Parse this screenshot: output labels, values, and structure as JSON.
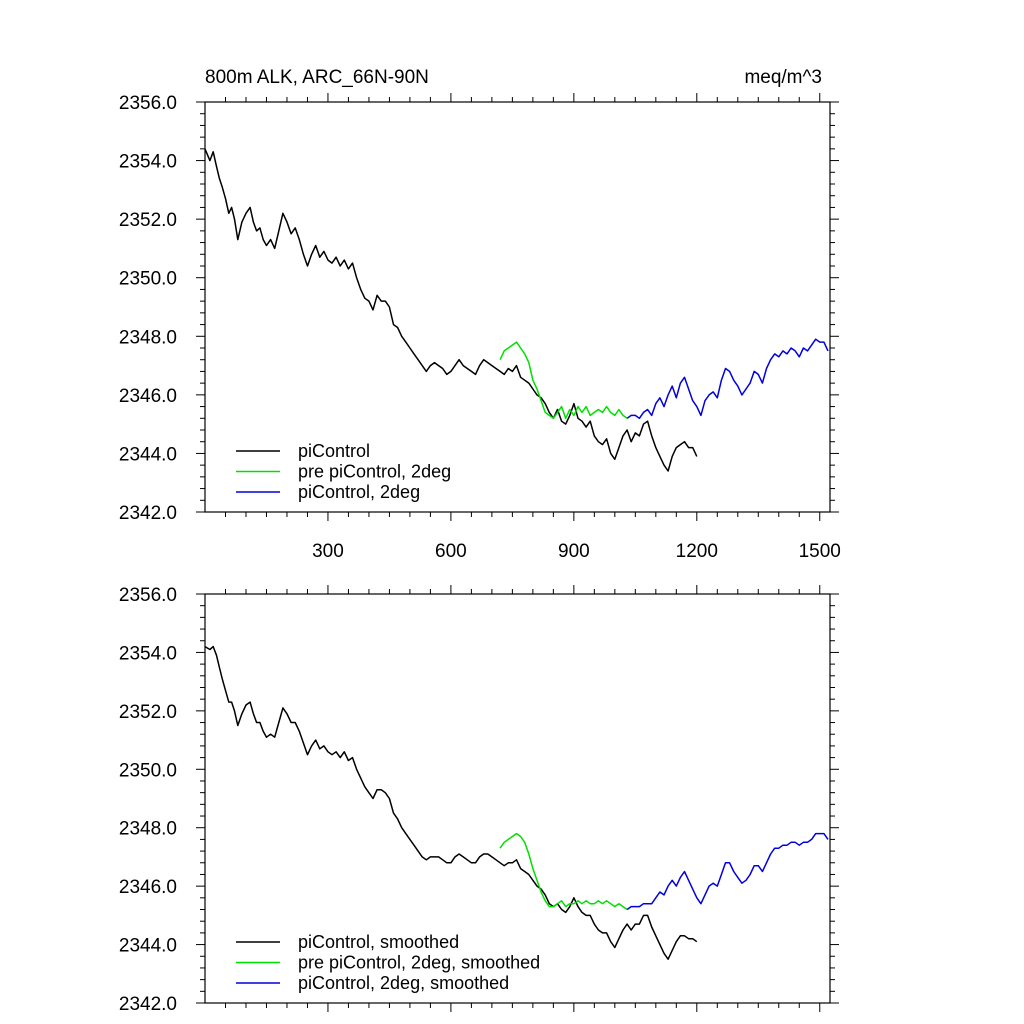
{
  "figure": {
    "title_left": "800m ALK, ARC_66N-90N",
    "title_right": "meq/m^3"
  },
  "colors": {
    "piControl": "#000000",
    "pre_piControl_2deg": "#00e000",
    "piControl_2deg": "#0000e0"
  },
  "chart_data": [
    {
      "type": "line",
      "title": "800m ALK, ARC_66N-90N",
      "units": "meq/m^3",
      "xlim": [
        0,
        1525
      ],
      "ylim": [
        2342.0,
        2356.0
      ],
      "xticks": [
        300,
        600,
        900,
        1200,
        1500
      ],
      "xtick_labels": [
        "300",
        "600",
        "900",
        "1200",
        "1500"
      ],
      "yticks": [
        2342,
        2344,
        2346,
        2348,
        2350,
        2352,
        2354,
        2356
      ],
      "ytick_labels": [
        "2342.0",
        "2344.0",
        "2346.0",
        "2348.0",
        "2350.0",
        "2352.0",
        "2354.0",
        "2356.0"
      ],
      "legend_position": "bottom-left",
      "series": [
        {
          "name": "piControl",
          "color_key": "piControl",
          "x": [
            0,
            12,
            20,
            28,
            35,
            42,
            50,
            58,
            65,
            72,
            80,
            90,
            100,
            110,
            118,
            126,
            134,
            142,
            150,
            160,
            170,
            180,
            190,
            200,
            210,
            220,
            230,
            240,
            250,
            260,
            270,
            280,
            290,
            300,
            310,
            320,
            330,
            340,
            350,
            360,
            370,
            380,
            390,
            400,
            410,
            420,
            430,
            440,
            450,
            460,
            470,
            480,
            490,
            500,
            510,
            520,
            530,
            540,
            550,
            560,
            570,
            580,
            590,
            600,
            610,
            620,
            630,
            640,
            650,
            660,
            670,
            680,
            690,
            700,
            710,
            720,
            730,
            740,
            750,
            760,
            770,
            780,
            790,
            800,
            810,
            820,
            830,
            840,
            850,
            860,
            870,
            880,
            890,
            900,
            910,
            920,
            930,
            940,
            950,
            960,
            970,
            980,
            990,
            1000,
            1010,
            1020,
            1030,
            1040,
            1050,
            1060,
            1070,
            1080,
            1090,
            1100,
            1110,
            1120,
            1130,
            1140,
            1150,
            1160,
            1170,
            1180,
            1190,
            1200
          ],
          "y": [
            2354.4,
            2354.0,
            2354.3,
            2353.8,
            2353.4,
            2353.1,
            2352.7,
            2352.2,
            2352.4,
            2352.0,
            2351.3,
            2351.9,
            2352.2,
            2352.4,
            2351.9,
            2351.6,
            2351.7,
            2351.3,
            2351.1,
            2351.3,
            2351.0,
            2351.6,
            2352.2,
            2351.9,
            2351.5,
            2351.7,
            2351.3,
            2350.8,
            2350.4,
            2350.8,
            2351.1,
            2350.7,
            2350.9,
            2350.6,
            2350.5,
            2350.7,
            2350.4,
            2350.6,
            2350.3,
            2350.5,
            2350.0,
            2349.6,
            2349.3,
            2349.2,
            2348.9,
            2349.4,
            2349.2,
            2349.2,
            2349.0,
            2348.4,
            2348.3,
            2348.0,
            2347.8,
            2347.6,
            2347.4,
            2347.2,
            2347.0,
            2346.8,
            2347.0,
            2347.1,
            2347.0,
            2346.9,
            2346.7,
            2346.8,
            2347.0,
            2347.2,
            2347.0,
            2346.9,
            2346.8,
            2346.7,
            2347.0,
            2347.2,
            2347.1,
            2347.0,
            2346.9,
            2346.8,
            2346.7,
            2346.9,
            2346.8,
            2347.0,
            2346.6,
            2346.5,
            2346.4,
            2346.2,
            2346.0,
            2345.9,
            2345.7,
            2345.4,
            2345.2,
            2345.5,
            2345.1,
            2345.0,
            2345.3,
            2345.7,
            2345.2,
            2345.1,
            2344.9,
            2345.1,
            2344.6,
            2344.4,
            2344.3,
            2344.5,
            2344.0,
            2343.8,
            2344.2,
            2344.6,
            2344.8,
            2344.4,
            2344.7,
            2344.6,
            2345.0,
            2345.1,
            2344.6,
            2344.2,
            2343.9,
            2343.6,
            2343.4,
            2343.9,
            2344.2,
            2344.3,
            2344.4,
            2344.2,
            2344.2,
            2343.9
          ]
        },
        {
          "name": "pre piControl, 2deg",
          "color_key": "pre_piControl_2deg",
          "x": [
            720,
            730,
            740,
            750,
            760,
            770,
            780,
            790,
            800,
            810,
            820,
            830,
            840,
            850,
            860,
            870,
            880,
            890,
            900,
            910,
            920,
            930,
            940,
            950,
            960,
            970,
            980,
            990,
            1000,
            1010,
            1020,
            1030
          ],
          "y": [
            2347.2,
            2347.5,
            2347.6,
            2347.7,
            2347.8,
            2347.6,
            2347.4,
            2347.1,
            2346.5,
            2346.2,
            2345.8,
            2345.4,
            2345.3,
            2345.2,
            2345.4,
            2345.6,
            2345.2,
            2345.5,
            2345.3,
            2345.6,
            2345.4,
            2345.6,
            2345.3,
            2345.4,
            2345.5,
            2345.4,
            2345.6,
            2345.4,
            2345.3,
            2345.5,
            2345.3,
            2345.2
          ]
        },
        {
          "name": "piControl, 2deg",
          "color_key": "piControl_2deg",
          "x": [
            1030,
            1040,
            1050,
            1060,
            1070,
            1080,
            1090,
            1100,
            1110,
            1120,
            1130,
            1140,
            1150,
            1160,
            1170,
            1180,
            1190,
            1200,
            1210,
            1220,
            1230,
            1240,
            1250,
            1260,
            1270,
            1280,
            1290,
            1300,
            1310,
            1320,
            1330,
            1340,
            1350,
            1360,
            1370,
            1380,
            1390,
            1400,
            1410,
            1420,
            1430,
            1440,
            1450,
            1460,
            1470,
            1480,
            1490,
            1500,
            1510,
            1520
          ],
          "y": [
            2345.2,
            2345.3,
            2345.3,
            2345.2,
            2345.4,
            2345.5,
            2345.3,
            2345.7,
            2345.9,
            2345.6,
            2346.0,
            2346.3,
            2345.9,
            2346.4,
            2346.6,
            2346.2,
            2345.8,
            2345.6,
            2345.3,
            2345.8,
            2346.0,
            2346.1,
            2345.9,
            2346.5,
            2346.9,
            2346.8,
            2346.5,
            2346.3,
            2346.0,
            2346.2,
            2346.4,
            2346.8,
            2346.7,
            2346.4,
            2346.9,
            2347.2,
            2347.4,
            2347.3,
            2347.5,
            2347.4,
            2347.6,
            2347.5,
            2347.3,
            2347.6,
            2347.5,
            2347.7,
            2347.9,
            2347.8,
            2347.8,
            2347.5
          ]
        }
      ]
    },
    {
      "type": "line",
      "units": "meq/m^3",
      "xlim": [
        0,
        1525
      ],
      "ylim": [
        2342.0,
        2356.0
      ],
      "xticks": [
        300,
        600,
        900,
        1200,
        1500
      ],
      "yticks": [
        2342,
        2344,
        2346,
        2348,
        2350,
        2352,
        2354,
        2356
      ],
      "ytick_labels": [
        "2342.0",
        "2344.0",
        "2346.0",
        "2348.0",
        "2350.0",
        "2352.0",
        "2354.0",
        "2356.0"
      ],
      "legend_position": "bottom-left",
      "series": [
        {
          "name": "piControl, smoothed",
          "color_key": "piControl",
          "x": [
            0,
            12,
            20,
            28,
            35,
            42,
            50,
            58,
            65,
            72,
            80,
            90,
            100,
            110,
            118,
            126,
            134,
            142,
            150,
            160,
            170,
            180,
            190,
            200,
            210,
            220,
            230,
            240,
            250,
            260,
            270,
            280,
            290,
            300,
            310,
            320,
            330,
            340,
            350,
            360,
            370,
            380,
            390,
            400,
            410,
            420,
            430,
            440,
            450,
            460,
            470,
            480,
            490,
            500,
            510,
            520,
            530,
            540,
            550,
            560,
            570,
            580,
            590,
            600,
            610,
            620,
            630,
            640,
            650,
            660,
            670,
            680,
            690,
            700,
            710,
            720,
            730,
            740,
            750,
            760,
            770,
            780,
            790,
            800,
            810,
            820,
            830,
            840,
            850,
            860,
            870,
            880,
            890,
            900,
            910,
            920,
            930,
            940,
            950,
            960,
            970,
            980,
            990,
            1000,
            1010,
            1020,
            1030,
            1040,
            1050,
            1060,
            1070,
            1080,
            1090,
            1100,
            1110,
            1120,
            1130,
            1140,
            1150,
            1160,
            1170,
            1180,
            1190,
            1200
          ],
          "y": [
            2354.2,
            2354.1,
            2354.2,
            2353.9,
            2353.5,
            2353.1,
            2352.7,
            2352.3,
            2352.3,
            2352.0,
            2351.5,
            2351.9,
            2352.2,
            2352.3,
            2351.9,
            2351.6,
            2351.6,
            2351.3,
            2351.1,
            2351.2,
            2351.1,
            2351.6,
            2352.1,
            2351.9,
            2351.6,
            2351.6,
            2351.3,
            2350.9,
            2350.5,
            2350.8,
            2351.0,
            2350.7,
            2350.8,
            2350.6,
            2350.5,
            2350.6,
            2350.4,
            2350.6,
            2350.3,
            2350.4,
            2350.0,
            2349.7,
            2349.4,
            2349.2,
            2349.0,
            2349.3,
            2349.3,
            2349.2,
            2349.0,
            2348.5,
            2348.3,
            2348.0,
            2347.8,
            2347.6,
            2347.4,
            2347.2,
            2347.0,
            2346.9,
            2347.0,
            2347.0,
            2347.0,
            2346.9,
            2346.8,
            2346.8,
            2347.0,
            2347.1,
            2347.0,
            2346.9,
            2346.8,
            2346.8,
            2347.0,
            2347.1,
            2347.1,
            2347.0,
            2346.9,
            2346.8,
            2346.7,
            2346.8,
            2346.8,
            2346.9,
            2346.6,
            2346.5,
            2346.4,
            2346.2,
            2346.0,
            2345.9,
            2345.7,
            2345.4,
            2345.3,
            2345.4,
            2345.2,
            2345.1,
            2345.3,
            2345.6,
            2345.3,
            2345.1,
            2345.0,
            2345.0,
            2344.7,
            2344.5,
            2344.4,
            2344.4,
            2344.1,
            2343.9,
            2344.2,
            2344.5,
            2344.7,
            2344.5,
            2344.7,
            2344.7,
            2345.0,
            2345.0,
            2344.6,
            2344.3,
            2344.0,
            2343.7,
            2343.5,
            2343.8,
            2344.1,
            2344.3,
            2344.3,
            2344.2,
            2344.2,
            2344.1
          ]
        },
        {
          "name": "pre piControl, 2deg, smoothed",
          "color_key": "pre_piControl_2deg",
          "x": [
            720,
            730,
            740,
            750,
            760,
            770,
            780,
            790,
            800,
            810,
            820,
            830,
            840,
            850,
            860,
            870,
            880,
            890,
            900,
            910,
            920,
            930,
            940,
            950,
            960,
            970,
            980,
            990,
            1000,
            1010,
            1020,
            1030
          ],
          "y": [
            2347.3,
            2347.5,
            2347.6,
            2347.7,
            2347.8,
            2347.7,
            2347.5,
            2347.1,
            2346.6,
            2346.2,
            2345.8,
            2345.5,
            2345.3,
            2345.3,
            2345.4,
            2345.5,
            2345.3,
            2345.4,
            2345.4,
            2345.5,
            2345.4,
            2345.5,
            2345.4,
            2345.4,
            2345.5,
            2345.4,
            2345.5,
            2345.4,
            2345.3,
            2345.4,
            2345.3,
            2345.2
          ]
        },
        {
          "name": "piControl, 2deg, smoothed",
          "color_key": "piControl_2deg",
          "x": [
            1030,
            1040,
            1050,
            1060,
            1070,
            1080,
            1090,
            1100,
            1110,
            1120,
            1130,
            1140,
            1150,
            1160,
            1170,
            1180,
            1190,
            1200,
            1210,
            1220,
            1230,
            1240,
            1250,
            1260,
            1270,
            1280,
            1290,
            1300,
            1310,
            1320,
            1330,
            1340,
            1350,
            1360,
            1370,
            1380,
            1390,
            1400,
            1410,
            1420,
            1430,
            1440,
            1450,
            1460,
            1470,
            1480,
            1490,
            1500,
            1510,
            1520
          ],
          "y": [
            2345.2,
            2345.3,
            2345.3,
            2345.3,
            2345.4,
            2345.4,
            2345.4,
            2345.6,
            2345.8,
            2345.7,
            2346.0,
            2346.2,
            2346.0,
            2346.3,
            2346.5,
            2346.2,
            2345.9,
            2345.6,
            2345.4,
            2345.7,
            2346.0,
            2346.1,
            2346.0,
            2346.4,
            2346.8,
            2346.8,
            2346.5,
            2346.3,
            2346.1,
            2346.2,
            2346.4,
            2346.7,
            2346.7,
            2346.5,
            2346.8,
            2347.1,
            2347.3,
            2347.3,
            2347.4,
            2347.4,
            2347.5,
            2347.5,
            2347.4,
            2347.5,
            2347.5,
            2347.6,
            2347.8,
            2347.8,
            2347.8,
            2347.6
          ]
        }
      ]
    }
  ]
}
